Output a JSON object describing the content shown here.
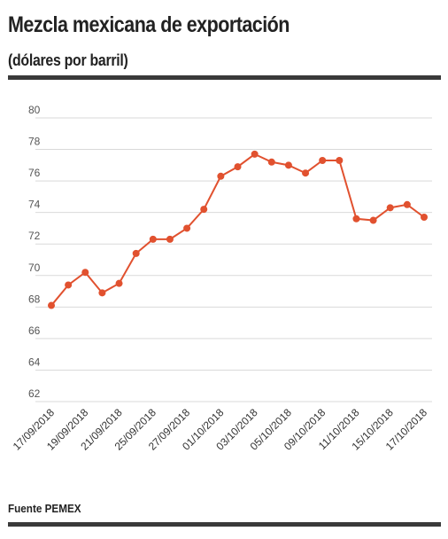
{
  "header": {
    "title": "Mezcla mexicana de exportación",
    "subtitle": "(dólares por barril)"
  },
  "footer": {
    "source": "Fuente PEMEX"
  },
  "colors": {
    "line": "#e1512f",
    "grid": "#d9d9d9",
    "rule": "#3a3a3a"
  },
  "chart_data": {
    "type": "line",
    "title": "Mezcla mexicana de exportación",
    "subtitle": "(dólares por barril)",
    "xlabel": "",
    "ylabel": "",
    "ylim": [
      62,
      80
    ],
    "yticks": [
      62,
      64,
      66,
      68,
      70,
      72,
      74,
      76,
      78,
      80
    ],
    "grid": true,
    "x": [
      "17/09/2018",
      "18/09/2018",
      "19/09/2018",
      "20/09/2018",
      "21/09/2018",
      "24/09/2018",
      "25/09/2018",
      "26/09/2018",
      "27/09/2018",
      "28/09/2018",
      "01/10/2018",
      "02/10/2018",
      "03/10/2018",
      "04/10/2018",
      "05/10/2018",
      "08/10/2018",
      "09/10/2018",
      "10/10/2018",
      "11/10/2018",
      "12/10/2018",
      "15/10/2018",
      "16/10/2018",
      "17/10/2018"
    ],
    "xtick_labels": [
      "17/09/2018",
      "19/09/2018",
      "21/09/2018",
      "25/09/2018",
      "27/09/2018",
      "01/10/2018",
      "03/10/2018",
      "05/10/2018",
      "09/10/2018",
      "11/10/2018",
      "15/10/2018",
      "17/10/2018"
    ],
    "series": [
      {
        "values": [
          68.1,
          69.4,
          70.2,
          68.9,
          69.5,
          71.4,
          72.3,
          72.3,
          73.0,
          74.2,
          76.3,
          76.9,
          77.7,
          77.2,
          77.0,
          76.5,
          77.3,
          77.3,
          73.6,
          73.5,
          74.3,
          74.5,
          73.7
        ]
      }
    ]
  }
}
